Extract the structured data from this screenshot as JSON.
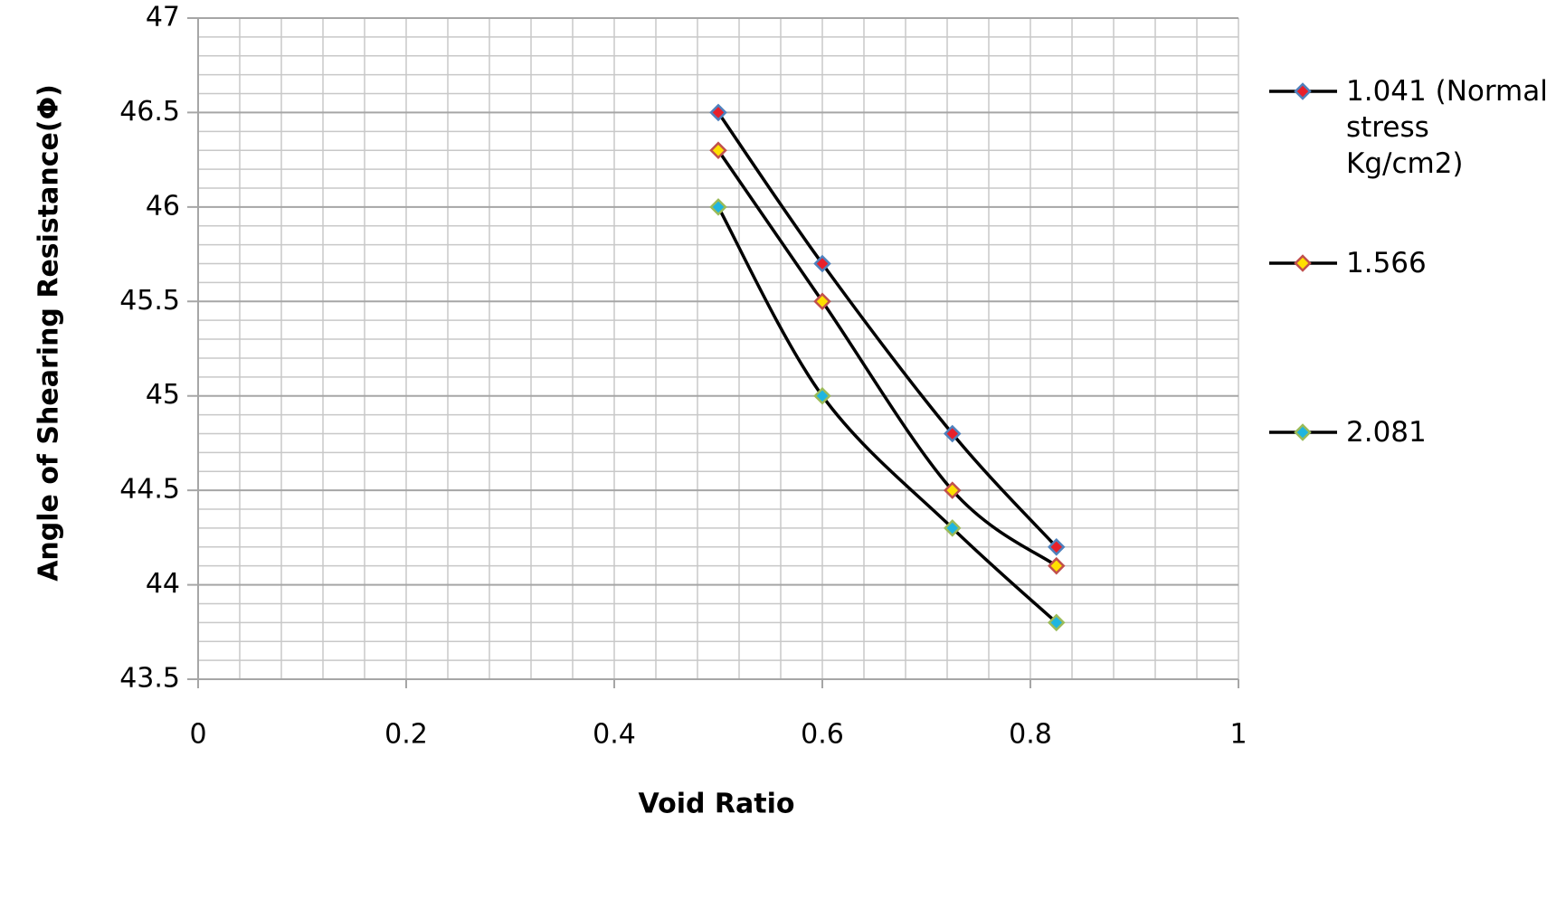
{
  "chart_data": {
    "type": "line",
    "x_label": "Void Ratio",
    "y_label": "Angle of Shearing Resistance(Φ)",
    "x": [
      0.5,
      0.6,
      0.725,
      0.825
    ],
    "series": [
      {
        "name": "1.041 (Normal stress Kg/cm2)",
        "color": "#000000",
        "marker_fill": "#e8202a",
        "marker_edge": "#4f81bd",
        "values": [
          46.5,
          45.7,
          44.8,
          44.2
        ]
      },
      {
        "name": "1.566",
        "color": "#000000",
        "marker_fill": "#ffe000",
        "marker_edge": "#c0504d",
        "values": [
          46.3,
          45.5,
          44.5,
          44.1
        ]
      },
      {
        "name": "2.081",
        "color": "#000000",
        "marker_fill": "#1fb5e0",
        "marker_edge": "#9bbb59",
        "values": [
          46.0,
          45.0,
          44.3,
          43.8
        ]
      }
    ],
    "xlim": [
      0,
      1
    ],
    "xticks": [
      0,
      0.2,
      0.4,
      0.6,
      0.8,
      1
    ],
    "ylim": [
      43.5,
      47
    ],
    "yticks": [
      43.5,
      44,
      44.5,
      45,
      45.5,
      46,
      46.5,
      47
    ],
    "grid": true,
    "x_minor_step": 0.04,
    "y_minor_step": 0.1,
    "smooth": true,
    "legend": "right"
  }
}
